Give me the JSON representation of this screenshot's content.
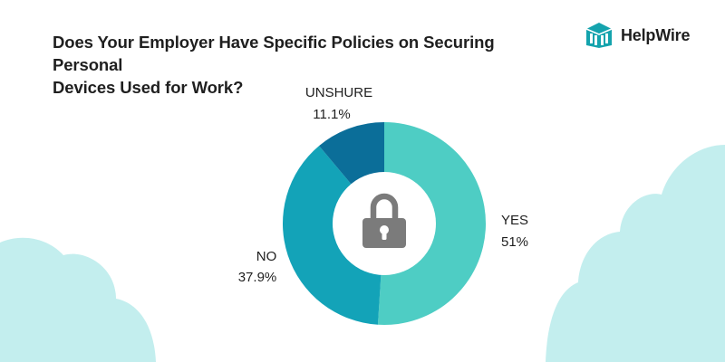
{
  "title_lines": [
    "Does Your Employer Have Specific Policies on Securing Personal",
    "Devices Used for Work?"
  ],
  "brand": {
    "name": "HelpWire",
    "logo_icon": "helpwire-logo-icon",
    "color": "#14a3ad"
  },
  "center_icon": "padlock-icon",
  "chart_data": {
    "type": "pie",
    "variant": "donut",
    "slices": [
      {
        "label": "YES",
        "value": 51,
        "display": "51%",
        "color": "#4ecdc4"
      },
      {
        "label": "NO",
        "value": 37.9,
        "display": "37.9%",
        "color": "#13a3b8"
      },
      {
        "label": "UNSHURE",
        "value": 11.1,
        "display": "11.1%",
        "color": "#0b6e99"
      }
    ],
    "start": "12 o'clock, clockwise"
  }
}
